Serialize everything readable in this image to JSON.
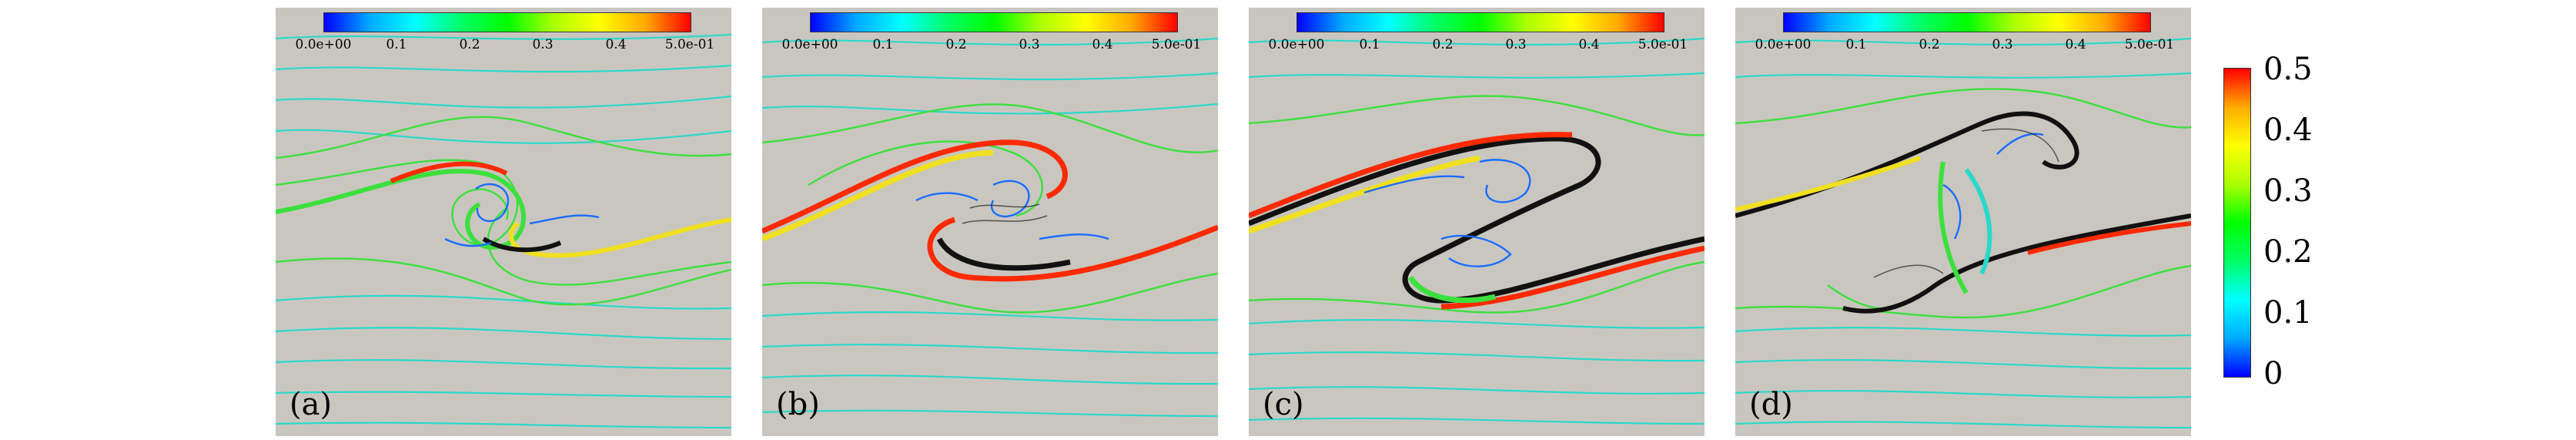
{
  "panels": [
    {
      "label": "(a)",
      "colorbar_ticks": [
        "0.0e+00",
        "0.1",
        "0.2",
        "0.3",
        "0.4",
        "5.0e-01"
      ]
    },
    {
      "label": "(b)",
      "colorbar_ticks": [
        "0.0e+00",
        "0.1",
        "0.2",
        "0.3",
        "0.4",
        "5.0e-01"
      ]
    },
    {
      "label": "(c)",
      "colorbar_ticks": [
        "0.0e+00",
        "0.1",
        "0.2",
        "0.3",
        "0.4",
        "5.0e-01"
      ]
    },
    {
      "label": "(d)",
      "colorbar_ticks": [
        "0.0e+00",
        "0.1",
        "0.2",
        "0.3",
        "0.4",
        "5.0e-01"
      ]
    }
  ],
  "side_colorbar": {
    "ticks": [
      "0.5",
      "0.4",
      "0.3",
      "0.2",
      "0.1",
      "0"
    ],
    "colors": {
      "low": "#0000ff",
      "mid": "#00ff00",
      "high": "#ff0000"
    }
  },
  "colors": {
    "background": "#c9c6c0",
    "streamline_outer": "#2ad9c8",
    "streamline_mid": "#3ce03c",
    "core_dark": "#111111",
    "core_hot": "#ff2a00",
    "core_warm": "#f0e020",
    "core_cool": "#1a6cff"
  }
}
